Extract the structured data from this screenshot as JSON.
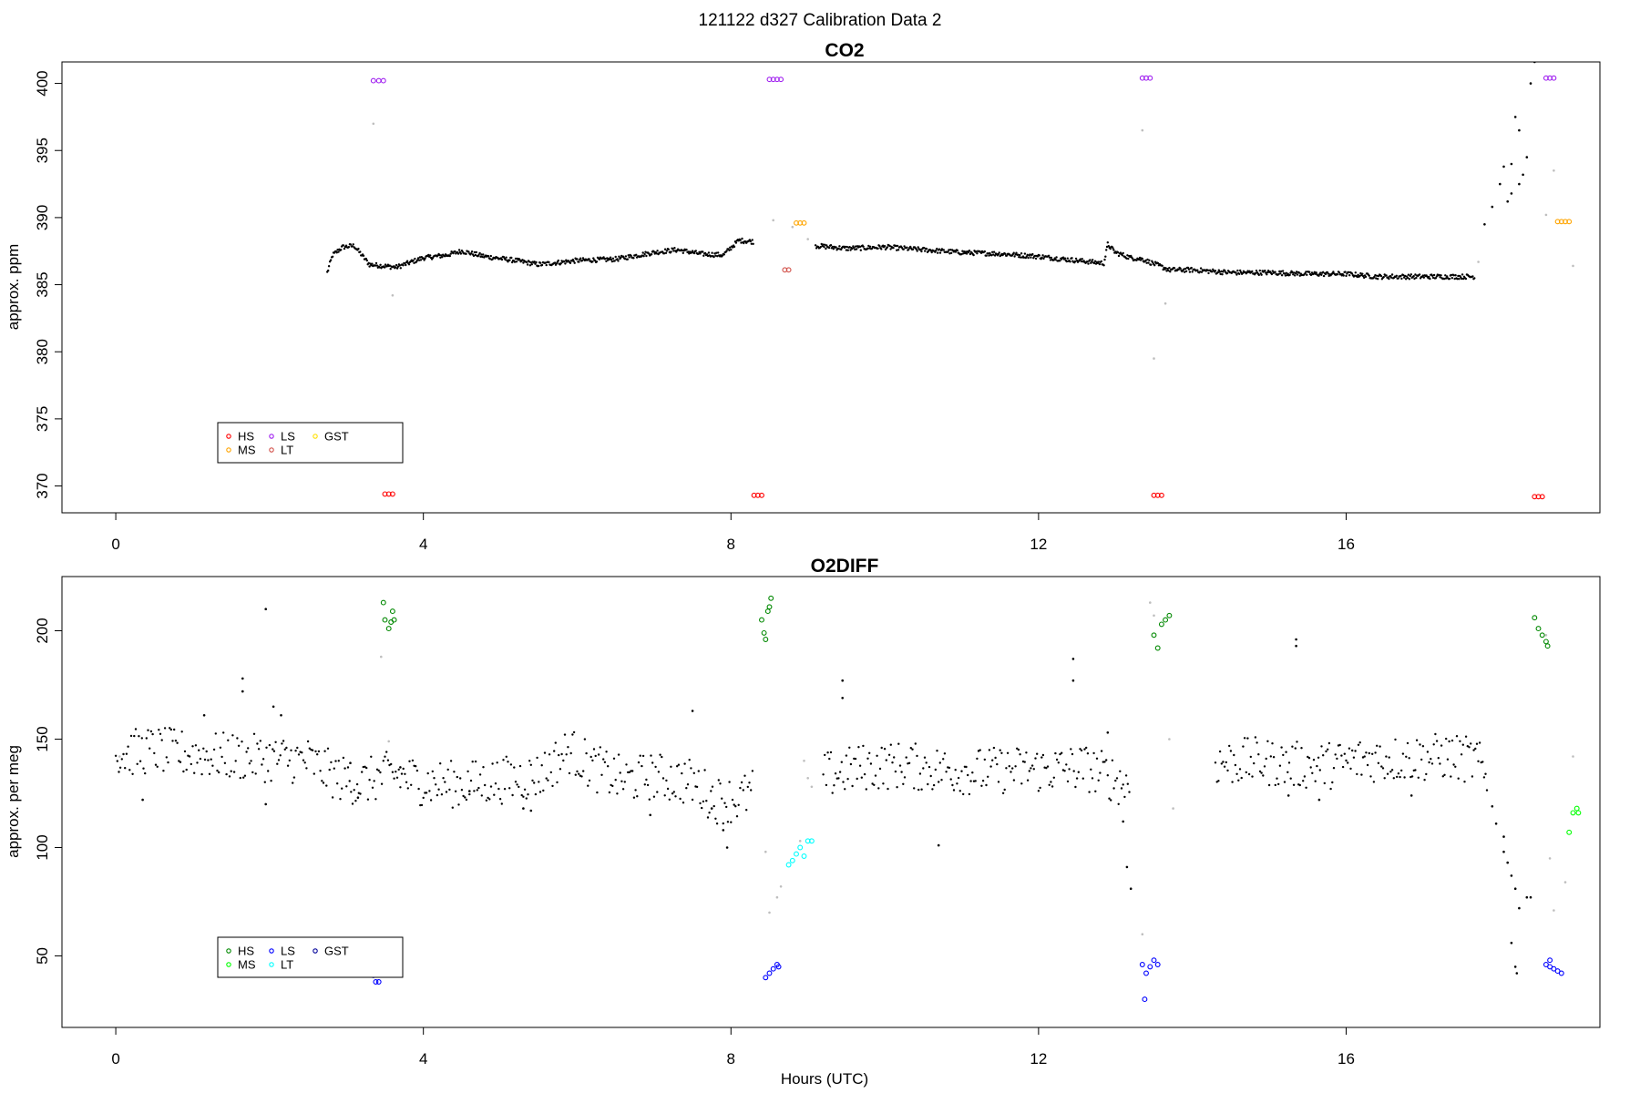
{
  "figure_title": "121122   d327   Calibration Data 2",
  "chart_data": [
    {
      "type": "scatter",
      "title": "CO2",
      "xlabel": "",
      "ylabel": "approx. ppm",
      "xlim": [
        -0.7,
        19.3
      ],
      "ylim": [
        368.0,
        401.6
      ],
      "xticks": [
        0,
        4,
        8,
        12,
        16
      ],
      "yticks": [
        370,
        375,
        380,
        385,
        390,
        395,
        400
      ],
      "legend": {
        "placement": "bottom-left",
        "entries": [
          {
            "label": "HS",
            "color": "#ff0000"
          },
          {
            "label": "MS",
            "color": "#ffa500"
          },
          {
            "label": "LS",
            "color": "#a020f0"
          },
          {
            "label": "LT",
            "color": "#d2514a"
          },
          {
            "label": "GST",
            "color": "#ffe000"
          }
        ]
      },
      "baseline_color": "#000000",
      "transition_color": "#bebebe",
      "baseline_trace": [
        [
          0.05,
          385.7
        ],
        [
          1.0,
          385.7
        ],
        [
          2.0,
          385.8
        ],
        [
          2.75,
          385.9
        ],
        [
          2.82,
          387.2
        ],
        [
          2.95,
          387.8
        ],
        [
          3.1,
          387.9
        ],
        [
          3.2,
          387.2
        ],
        [
          3.3,
          386.5
        ],
        [
          3.65,
          386.3
        ],
        [
          4.0,
          387.0
        ],
        [
          4.3,
          387.2
        ],
        [
          4.5,
          387.5
        ],
        [
          4.8,
          387.1
        ],
        [
          5.2,
          386.8
        ],
        [
          5.5,
          386.5
        ],
        [
          6.0,
          386.8
        ],
        [
          6.5,
          386.9
        ],
        [
          7.0,
          387.4
        ],
        [
          7.3,
          387.6
        ],
        [
          7.6,
          387.3
        ],
        [
          7.9,
          387.2
        ],
        [
          8.1,
          388.3
        ],
        [
          8.3,
          388.2
        ],
        [
          9.1,
          387.9
        ],
        [
          9.5,
          387.7
        ],
        [
          10.0,
          387.8
        ],
        [
          10.5,
          387.6
        ],
        [
          11.0,
          387.4
        ],
        [
          11.5,
          387.3
        ],
        [
          12.0,
          387.1
        ],
        [
          12.5,
          386.8
        ],
        [
          12.85,
          386.6
        ],
        [
          12.9,
          388.0
        ],
        [
          13.0,
          387.4
        ],
        [
          13.2,
          387.0
        ],
        [
          13.35,
          386.9
        ],
        [
          13.7,
          386.1
        ],
        [
          14.0,
          386.1
        ],
        [
          14.5,
          385.9
        ],
        [
          15.0,
          385.9
        ],
        [
          15.5,
          385.8
        ],
        [
          16.0,
          385.8
        ],
        [
          16.4,
          385.6
        ],
        [
          16.8,
          385.6
        ],
        [
          17.2,
          385.6
        ],
        [
          17.68,
          385.6
        ]
      ],
      "excursions": [
        [
          17.8,
          389.5
        ],
        [
          17.9,
          390.8
        ],
        [
          18.0,
          392.5
        ],
        [
          18.05,
          393.8
        ],
        [
          18.1,
          391.2
        ],
        [
          18.15,
          394.0
        ],
        [
          18.2,
          397.5
        ],
        [
          18.25,
          396.5
        ],
        [
          18.3,
          393.2
        ],
        [
          18.35,
          394.5
        ],
        [
          18.4,
          400.0
        ],
        [
          18.45,
          401.6
        ],
        [
          18.15,
          391.8
        ],
        [
          18.25,
          392.5
        ]
      ],
      "transitions": [
        [
          3.35,
          397.0
        ],
        [
          3.6,
          384.2
        ],
        [
          8.55,
          389.8
        ],
        [
          8.8,
          389.3
        ],
        [
          9.0,
          388.4
        ],
        [
          13.35,
          396.5
        ],
        [
          13.5,
          379.5
        ],
        [
          13.65,
          383.6
        ],
        [
          17.72,
          386.7
        ],
        [
          18.6,
          390.2
        ],
        [
          18.7,
          393.5
        ],
        [
          18.95,
          386.4
        ]
      ],
      "standards": [
        {
          "name": "HS",
          "color": "#ff0000",
          "points": [
            [
              3.5,
              369.4
            ],
            [
              3.55,
              369.4
            ],
            [
              3.6,
              369.4
            ],
            [
              8.3,
              369.3
            ],
            [
              8.35,
              369.3
            ],
            [
              8.4,
              369.3
            ],
            [
              13.5,
              369.3
            ],
            [
              13.55,
              369.3
            ],
            [
              13.6,
              369.3
            ],
            [
              18.45,
              369.2
            ],
            [
              18.5,
              369.2
            ],
            [
              18.55,
              369.2
            ]
          ]
        },
        {
          "name": "LS",
          "color": "#a020f0",
          "points": [
            [
              3.35,
              400.2
            ],
            [
              3.42,
              400.2
            ],
            [
              3.48,
              400.2
            ],
            [
              8.5,
              400.3
            ],
            [
              8.55,
              400.3
            ],
            [
              8.6,
              400.3
            ],
            [
              8.65,
              400.3
            ],
            [
              13.35,
              400.4
            ],
            [
              13.4,
              400.4
            ],
            [
              13.45,
              400.4
            ],
            [
              18.6,
              400.4
            ],
            [
              18.65,
              400.4
            ],
            [
              18.7,
              400.4
            ]
          ]
        },
        {
          "name": "MS",
          "color": "#ffa500",
          "points": [
            [
              8.85,
              389.6
            ],
            [
              8.9,
              389.6
            ],
            [
              8.95,
              389.6
            ],
            [
              18.75,
              389.7
            ],
            [
              18.8,
              389.7
            ],
            [
              18.85,
              389.7
            ],
            [
              18.9,
              389.7
            ]
          ]
        },
        {
          "name": "LT",
          "color": "#d2514a",
          "points": [
            [
              8.7,
              386.1
            ],
            [
              8.75,
              386.1
            ]
          ]
        }
      ]
    },
    {
      "type": "scatter",
      "title": "O2DIFF",
      "xlabel": "Hours (UTC)",
      "ylabel": "approx. per meg",
      "xlim": [
        -0.7,
        19.3
      ],
      "ylim": [
        17,
        225
      ],
      "xticks": [
        0,
        4,
        8,
        12,
        16
      ],
      "yticks": [
        50,
        100,
        150,
        200
      ],
      "legend": {
        "placement": "bottom-left",
        "entries": [
          {
            "label": "HS",
            "color": "#008800"
          },
          {
            "label": "MS",
            "color": "#00ff00"
          },
          {
            "label": "LS",
            "color": "#0000ff"
          },
          {
            "label": "LT",
            "color": "#00ffff"
          },
          {
            "label": "GST",
            "color": "#000099"
          }
        ]
      },
      "baseline_color": "#000000",
      "transition_color": "#bebebe",
      "baseline_trace": [
        [
          0.0,
          143
        ],
        [
          0.5,
          145
        ],
        [
          1.0,
          143
        ],
        [
          1.5,
          142
        ],
        [
          2.0,
          141
        ],
        [
          2.5,
          140
        ],
        [
          2.9,
          132
        ],
        [
          3.2,
          130
        ],
        [
          3.6,
          134
        ],
        [
          4.0,
          130
        ],
        [
          4.5,
          129
        ],
        [
          5.0,
          131
        ],
        [
          5.5,
          133
        ],
        [
          5.9,
          145
        ],
        [
          6.2,
          137
        ],
        [
          6.6,
          131
        ],
        [
          7.0,
          133
        ],
        [
          7.5,
          130
        ],
        [
          7.8,
          122
        ],
        [
          8.1,
          122
        ],
        [
          8.3,
          126
        ],
        [
          9.2,
          133
        ],
        [
          9.7,
          137
        ],
        [
          10.2,
          138
        ],
        [
          10.7,
          136
        ],
        [
          11.2,
          135
        ],
        [
          11.7,
          136
        ],
        [
          12.2,
          136
        ],
        [
          12.6,
          137
        ],
        [
          12.9,
          133
        ],
        [
          13.2,
          128
        ],
        [
          13.75,
          136
        ],
        [
          14.3,
          139
        ],
        [
          14.8,
          140
        ],
        [
          15.3,
          138
        ],
        [
          15.8,
          138
        ],
        [
          16.3,
          141
        ],
        [
          16.8,
          141
        ],
        [
          17.3,
          142
        ],
        [
          17.7,
          140
        ],
        [
          17.85,
          130
        ]
      ],
      "excursions": [
        [
          0.35,
          122
        ],
        [
          1.15,
          161
        ],
        [
          1.65,
          172
        ],
        [
          1.65,
          178
        ],
        [
          1.95,
          210
        ],
        [
          2.05,
          165
        ],
        [
          2.15,
          161
        ],
        [
          1.95,
          120
        ],
        [
          3.15,
          123
        ],
        [
          3.05,
          139
        ],
        [
          3.7,
          137
        ],
        [
          4.6,
          126
        ],
        [
          5.3,
          118
        ],
        [
          5.4,
          117
        ],
        [
          6.95,
          115
        ],
        [
          7.5,
          163
        ],
        [
          7.9,
          108
        ],
        [
          7.95,
          100
        ],
        [
          7.75,
          118
        ],
        [
          9.45,
          177
        ],
        [
          9.45,
          169
        ],
        [
          10.7,
          101
        ],
        [
          12.45,
          187
        ],
        [
          12.45,
          177
        ],
        [
          12.9,
          153
        ],
        [
          13.1,
          112
        ],
        [
          13.15,
          91
        ],
        [
          13.2,
          81
        ],
        [
          15.35,
          193
        ],
        [
          15.35,
          196
        ],
        [
          15.25,
          124
        ],
        [
          15.65,
          122
        ],
        [
          16.85,
          124
        ],
        [
          17.9,
          119
        ],
        [
          17.95,
          111
        ],
        [
          18.05,
          98
        ],
        [
          18.1,
          93
        ],
        [
          18.15,
          87
        ],
        [
          18.2,
          81
        ],
        [
          18.25,
          72
        ],
        [
          18.35,
          77
        ],
        [
          18.4,
          77
        ],
        [
          18.15,
          56
        ],
        [
          18.2,
          45
        ],
        [
          18.22,
          42
        ],
        [
          18.05,
          105
        ]
      ],
      "transitions": [
        [
          0.05,
          142
        ],
        [
          3.45,
          188
        ],
        [
          3.55,
          149
        ],
        [
          8.45,
          98
        ],
        [
          8.5,
          70
        ],
        [
          8.6,
          77
        ],
        [
          8.65,
          82
        ],
        [
          8.9,
          103
        ],
        [
          8.95,
          140
        ],
        [
          9.0,
          132
        ],
        [
          9.05,
          128
        ],
        [
          13.35,
          60
        ],
        [
          13.45,
          213
        ],
        [
          13.5,
          207
        ],
        [
          13.7,
          150
        ],
        [
          13.75,
          118
        ],
        [
          18.65,
          95
        ],
        [
          18.7,
          71
        ],
        [
          18.85,
          84
        ],
        [
          18.95,
          142
        ],
        [
          18.6,
          198
        ]
      ],
      "standards": [
        {
          "name": "HS",
          "color": "#008800",
          "points": [
            [
              3.48,
              213
            ],
            [
              3.5,
              205
            ],
            [
              3.55,
              201
            ],
            [
              3.58,
              204
            ],
            [
              3.6,
              209
            ],
            [
              3.62,
              205
            ],
            [
              8.4,
              205
            ],
            [
              8.43,
              199
            ],
            [
              8.45,
              196
            ],
            [
              8.48,
              209
            ],
            [
              8.5,
              211
            ],
            [
              8.52,
              215
            ],
            [
              13.5,
              198
            ],
            [
              13.55,
              192
            ],
            [
              13.6,
              203
            ],
            [
              13.65,
              205
            ],
            [
              13.7,
              207
            ],
            [
              18.45,
              206
            ],
            [
              18.5,
              201
            ],
            [
              18.55,
              198
            ],
            [
              18.6,
              195
            ],
            [
              18.62,
              193
            ]
          ]
        },
        {
          "name": "MS",
          "color": "#00ff00",
          "points": [
            [
              18.9,
              107
            ],
            [
              18.95,
              116
            ],
            [
              19.0,
              118
            ],
            [
              19.02,
              116
            ]
          ]
        },
        {
          "name": "LS",
          "color": "#0000ff",
          "points": [
            [
              3.35,
              41
            ],
            [
              3.38,
              38
            ],
            [
              3.42,
              38
            ],
            [
              8.45,
              40
            ],
            [
              8.5,
              42
            ],
            [
              8.55,
              44
            ],
            [
              8.6,
              46
            ],
            [
              8.62,
              45
            ],
            [
              13.35,
              46
            ],
            [
              13.4,
              42
            ],
            [
              13.45,
              45
            ],
            [
              13.5,
              48
            ],
            [
              13.55,
              46
            ],
            [
              13.38,
              30
            ],
            [
              18.6,
              46
            ],
            [
              18.65,
              45
            ],
            [
              18.7,
              44
            ],
            [
              18.75,
              43
            ],
            [
              18.8,
              42
            ],
            [
              18.65,
              48
            ]
          ]
        },
        {
          "name": "LT",
          "color": "#00ffff",
          "points": [
            [
              8.75,
              92
            ],
            [
              8.8,
              94
            ],
            [
              8.85,
              97
            ],
            [
              8.9,
              100
            ],
            [
              8.95,
              96
            ],
            [
              9.0,
              103
            ],
            [
              9.05,
              103
            ]
          ]
        }
      ]
    }
  ]
}
